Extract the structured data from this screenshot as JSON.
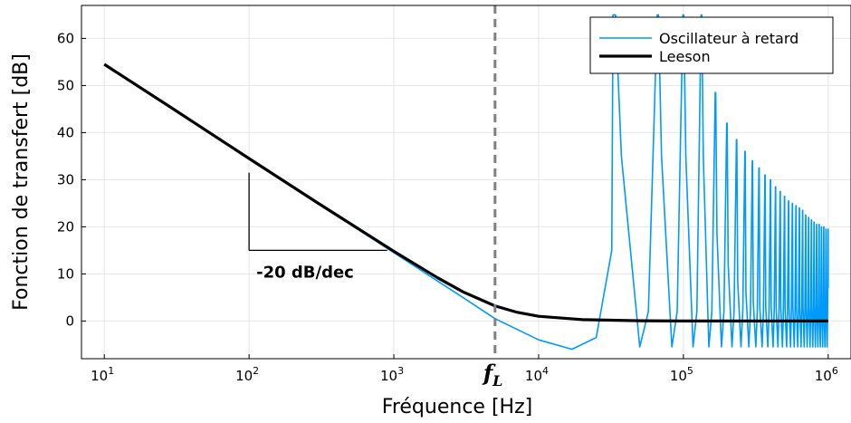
{
  "chart_data": {
    "type": "line",
    "xlabel": "Fréquence [Hz]",
    "ylabel": "Fonction de transfert [dB]",
    "xscale": "log",
    "xlim": [
      10,
      1000000
    ],
    "ylim": [
      -8,
      67
    ],
    "xticks": [
      {
        "value": 10,
        "base": "10",
        "exp": "1"
      },
      {
        "value": 100,
        "base": "10",
        "exp": "2"
      },
      {
        "value": 1000,
        "base": "10",
        "exp": "3"
      },
      {
        "value": 10000,
        "base": "10",
        "exp": "4"
      },
      {
        "value": 100000,
        "base": "10",
        "exp": "5"
      },
      {
        "value": 1000000,
        "base": "10",
        "exp": "6"
      }
    ],
    "yticks": [
      0,
      10,
      20,
      30,
      40,
      50,
      60
    ],
    "grid": true,
    "legend": {
      "placement": "top-right",
      "entries": [
        {
          "name": "Oscillateur à retard",
          "color": "#009AFA"
        },
        {
          "name": "Leeson",
          "color": "#000000"
        }
      ]
    },
    "series": [
      {
        "name": "Oscillateur à retard",
        "color": "#009AFA",
        "description": "Tracks Leeson at low frequency, then falls below 0 dB near 10^4 Hz and shows resonant peaks at integer multiples of ~33300 Hz",
        "low_freq_x": [
          10,
          100,
          1000,
          3000,
          5000,
          10000,
          17000,
          25000,
          32000
        ],
        "low_freq_y": [
          54.5,
          34.5,
          14.5,
          5.0,
          0.5,
          -4.0,
          -6.0,
          -3.5,
          15.0
        ],
        "peak_spacing_hz": 33300,
        "trough_db": -6.0,
        "peak_top_db": [
          65,
          65,
          65,
          65,
          48.5,
          42,
          38.5,
          36,
          34,
          32.5,
          31,
          30,
          28.5,
          27.5,
          26.5,
          25.5,
          25,
          24.5,
          24,
          23.5,
          22.5,
          22,
          21.5,
          21,
          20.5,
          20.5,
          20,
          20,
          19.5,
          19.5
        ]
      },
      {
        "name": "Leeson",
        "color": "#000000",
        "x": [
          10,
          30,
          100,
          300,
          1000,
          2000,
          3000,
          5000,
          7000,
          10000,
          20000,
          50000,
          100000,
          1000000
        ],
        "y": [
          54.5,
          45.0,
          34.5,
          25.0,
          14.8,
          9.2,
          6.2,
          3.2,
          1.9,
          1.0,
          0.3,
          0.05,
          0.0,
          0.0
        ]
      }
    ],
    "annotations": [
      {
        "type": "vline",
        "x": 5000,
        "style": "dashed",
        "color": "#808080",
        "label": "f",
        "label_sub": "L"
      },
      {
        "type": "slope-triangle",
        "x": [
          100,
          900
        ],
        "y": [
          15,
          31.5
        ],
        "text": "-20 dB/dec"
      }
    ]
  }
}
